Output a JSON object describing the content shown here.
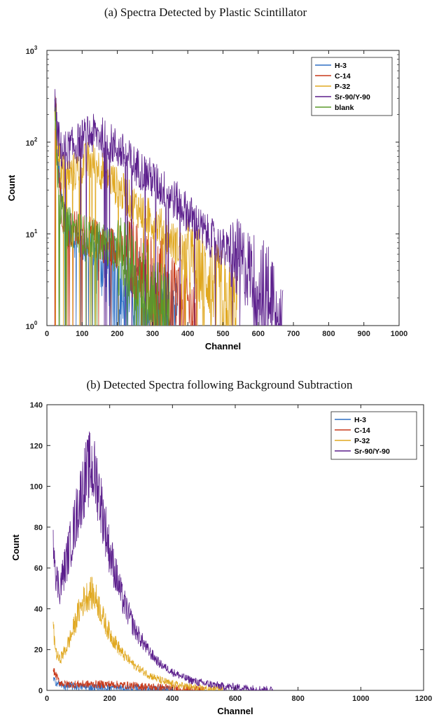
{
  "captions": {
    "a": "(a)  Spectra Detected by Plastic Scintillator",
    "b": "(b)  Detected Spectra following Background Subtraction"
  },
  "chart_data": [
    {
      "type": "line",
      "yscale": "log",
      "xlabel": "Channel",
      "ylabel": "Count",
      "xlim": [
        0,
        1000
      ],
      "ylim": [
        1,
        1000
      ],
      "xticks": [
        0,
        100,
        200,
        300,
        400,
        500,
        600,
        700,
        800,
        900,
        1000
      ],
      "yticks": [
        {
          "base": "10",
          "exp": "0"
        },
        {
          "base": "10",
          "exp": "1"
        },
        {
          "base": "10",
          "exp": "2"
        },
        {
          "base": "10",
          "exp": "3"
        }
      ],
      "legend_position": "top-right",
      "series": [
        {
          "name": "H-3",
          "color": "#2f6fc4",
          "x": [
            22,
            30,
            40,
            50,
            60,
            80,
            100,
            120,
            140,
            160,
            180,
            200,
            230,
            260,
            300,
            340,
            370
          ],
          "y": [
            250,
            60,
            22,
            14,
            11,
            9,
            8,
            7,
            6,
            5,
            4,
            3.5,
            3,
            2.5,
            2,
            1.5,
            1.2
          ]
        },
        {
          "name": "C-14",
          "color": "#c8391a",
          "x": [
            22,
            30,
            40,
            50,
            60,
            80,
            100,
            130,
            160,
            200,
            240,
            280,
            320,
            360,
            400,
            430
          ],
          "y": [
            250,
            60,
            22,
            14,
            12,
            11,
            10,
            9,
            8,
            7,
            5.5,
            4.5,
            3.5,
            2.5,
            1.7,
            1.2
          ]
        },
        {
          "name": "P-32",
          "color": "#e0a820",
          "x": [
            22,
            30,
            40,
            60,
            80,
            100,
            120,
            140,
            160,
            180,
            200,
            240,
            280,
            320,
            360,
            400,
            440,
            480,
            520,
            540
          ],
          "y": [
            250,
            100,
            50,
            42,
            48,
            58,
            62,
            57,
            48,
            40,
            32,
            22,
            16,
            12,
            8,
            5.5,
            4,
            2.8,
            2,
            1.6
          ]
        },
        {
          "name": "Sr-90/Y-90",
          "color": "#5b1e8c",
          "x": [
            22,
            30,
            40,
            60,
            80,
            100,
            120,
            140,
            160,
            180,
            200,
            240,
            280,
            320,
            360,
            400,
            440,
            480,
            520,
            560,
            600,
            640,
            670
          ],
          "y": [
            250,
            120,
            80,
            82,
            92,
            108,
            120,
            122,
            112,
            98,
            85,
            60,
            45,
            33,
            24,
            17,
            11,
            8,
            6,
            4.5,
            3.5,
            2.6,
            2
          ]
        },
        {
          "name": "blank",
          "color": "#5a9a2a",
          "x": [
            22,
            30,
            40,
            50,
            60,
            80,
            100,
            130,
            160,
            200,
            240,
            280,
            320,
            350
          ],
          "y": [
            200,
            50,
            18,
            13,
            12,
            11,
            10,
            9,
            8,
            6,
            4.5,
            3,
            2,
            1.3
          ]
        }
      ]
    },
    {
      "type": "line",
      "xlabel": "Channel",
      "ylabel": "Count",
      "xlim": [
        0,
        1200
      ],
      "ylim": [
        0,
        140
      ],
      "xticks": [
        0,
        200,
        400,
        600,
        800,
        1000,
        1200
      ],
      "yticks": [
        0,
        20,
        40,
        60,
        80,
        100,
        120,
        140
      ],
      "legend_position": "top-right",
      "series": [
        {
          "name": "H-3",
          "color": "#2f6fc4",
          "x": [
            20,
            40,
            60,
            100,
            150,
            200,
            250,
            300,
            350,
            400
          ],
          "y": [
            5,
            3,
            2,
            2,
            1.5,
            1.5,
            1,
            1,
            0.5,
            0
          ]
        },
        {
          "name": "C-14",
          "color": "#c8391a",
          "x": [
            20,
            40,
            60,
            100,
            150,
            200,
            250,
            300,
            350,
            400,
            450,
            500
          ],
          "y": [
            10,
            4,
            3,
            3,
            3,
            3,
            2.5,
            2,
            1.5,
            1,
            0.5,
            0
          ]
        },
        {
          "name": "P-32",
          "color": "#e0a820",
          "x": [
            20,
            30,
            40,
            60,
            80,
            100,
            120,
            140,
            160,
            180,
            200,
            240,
            280,
            320,
            360,
            400,
            440,
            480,
            520,
            560
          ],
          "y": [
            30,
            18,
            15,
            20,
            28,
            38,
            45,
            48,
            44,
            35,
            28,
            18,
            12,
            8,
            5,
            3,
            2,
            1,
            0.5,
            0
          ]
        },
        {
          "name": "Sr-90/Y-90",
          "color": "#5b1e8c",
          "x": [
            20,
            30,
            40,
            60,
            80,
            100,
            120,
            140,
            160,
            180,
            200,
            240,
            280,
            320,
            360,
            400,
            440,
            480,
            520,
            560,
            600,
            640,
            680,
            720
          ],
          "y": [
            80,
            55,
            50,
            62,
            75,
            90,
            103,
            110,
            102,
            85,
            68,
            45,
            30,
            20,
            13,
            9,
            6,
            4,
            3,
            2,
            1.5,
            1,
            0.5,
            0
          ]
        }
      ]
    }
  ]
}
